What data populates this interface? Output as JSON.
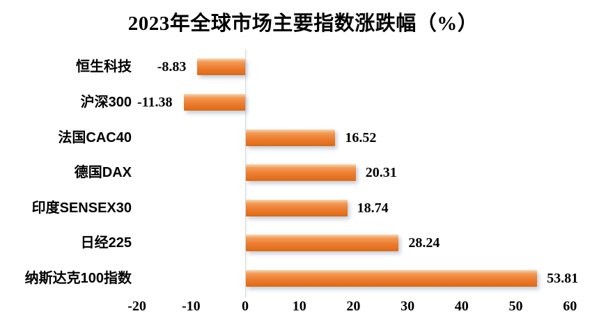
{
  "page": {
    "background": "#ffffff"
  },
  "chart_data": {
    "type": "bar",
    "orientation": "horizontal",
    "title": "2023年全球市场主要指数涨跌幅（%）",
    "categories": [
      "恒生科技",
      "沪深300",
      "法国CAC40",
      "德国DAX",
      "印度SENSEX30",
      "日经225",
      "纳斯达克100指数"
    ],
    "values": [
      -8.83,
      -11.38,
      16.52,
      20.31,
      18.74,
      28.24,
      53.81
    ],
    "value_labels": [
      "-8.83",
      "-11.38",
      "16.52",
      "20.31",
      "18.74",
      "28.24",
      "53.81"
    ],
    "x_tick_labels": [
      "-20",
      "-10",
      "0",
      "10",
      "20",
      "30",
      "40",
      "50",
      "60"
    ],
    "x_tick_values": [
      -20,
      -10,
      0,
      10,
      20,
      30,
      40,
      50,
      60
    ],
    "xlim": [
      -20,
      60
    ],
    "grid": false,
    "legend_position": "none",
    "data_label_position": "outside-end",
    "colors": {
      "bar_gradient_top": "#f9d6b2",
      "bar_gradient_upper": "#f29a55",
      "bar_gradient_mid": "#ed7d31",
      "bar_gradient_bottom": "#dd6a12",
      "zero_axis_line": "#d9d9d9",
      "text": "#000000"
    }
  }
}
